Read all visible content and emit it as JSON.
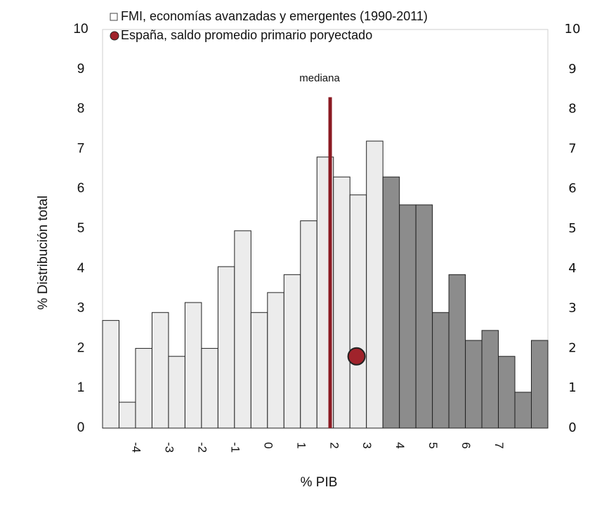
{
  "chart_data": {
    "type": "histogram",
    "bins": [
      -5,
      -4.5,
      -4,
      -3.5,
      -3,
      -2.5,
      -2,
      -1.5,
      -1,
      -0.5,
      0,
      0.5,
      1,
      1.5,
      2,
      2.5,
      3,
      3.5,
      4,
      4.5,
      5,
      5.5,
      6,
      6.5,
      7,
      7.5,
      8,
      8.5
    ],
    "series": [
      {
        "name": "FMI, economías avanzadas y emergentes (1990-2011)",
        "values": [
          2.7,
          0.65,
          2.0,
          2.9,
          1.8,
          3.15,
          2.0,
          4.05,
          4.95,
          2.9,
          3.4,
          3.85,
          5.2,
          6.8,
          6.3,
          5.85,
          7.2,
          6.3,
          5.6,
          5.6,
          2.9,
          3.85,
          2.2,
          2.45,
          1.8,
          0.9,
          2.2
        ],
        "colors": [
          "#ececec",
          "#ececec",
          "#ececec",
          "#ececec",
          "#ececec",
          "#ececec",
          "#ececec",
          "#ececec",
          "#ececec",
          "#ececec",
          "#ececec",
          "#ececec",
          "#ececec",
          "#ececec",
          "#ececec",
          "#ececec",
          "#ececec",
          "#8c8c8c",
          "#8c8c8c",
          "#8c8c8c",
          "#8c8c8c",
          "#8c8c8c",
          "#8c8c8c",
          "#8c8c8c",
          "#8c8c8c",
          "#8c8c8c",
          "#8c8c8c"
        ]
      },
      {
        "name": "España, saldo promedio primario poryectado",
        "type": "scatter",
        "x": [
          2.7
        ],
        "values": [
          1.8
        ],
        "color": "#a0232b"
      }
    ],
    "median": {
      "label": "mediana",
      "x": 1.9,
      "y": 8.3,
      "color": "#8b1a22"
    },
    "xlabel": "% PIB",
    "ylabel": "% Distribución total",
    "xlim": [
      -5,
      8.5
    ],
    "xticks": [
      -4,
      -3,
      -2,
      -1,
      0,
      1,
      2,
      3,
      4,
      5,
      6,
      7
    ],
    "ylim": [
      0,
      10
    ],
    "yticks": [
      0,
      1,
      2,
      3,
      4,
      5,
      6,
      7,
      8,
      9,
      10
    ],
    "y2lim": [
      0,
      10
    ],
    "y2ticks": [
      0,
      1,
      2,
      3,
      4,
      5,
      6,
      7,
      8,
      9,
      10
    ]
  }
}
